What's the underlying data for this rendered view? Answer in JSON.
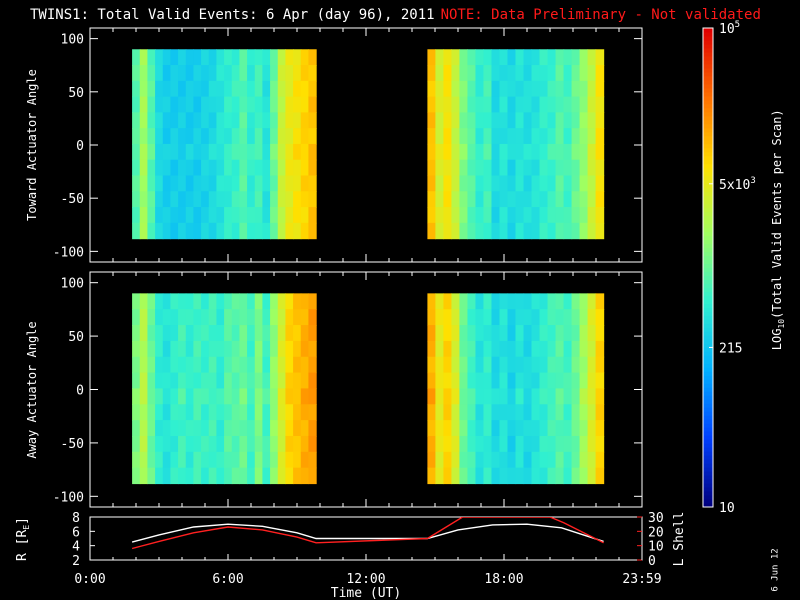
{
  "title": {
    "main": "TWINS1: Total Valid Events:  6 Apr (day  96), 2011",
    "note": "NOTE: Data Preliminary - Not validated",
    "note_color": "#ff1a1a"
  },
  "date_stamp": "6 Jun 12",
  "colorbar": {
    "label": "LOG10(Total Valid Events per Scan)",
    "label_parts": [
      "LOG",
      "10",
      "(Total Valid Events per Scan)"
    ],
    "scale": "log",
    "range": [
      10,
      100000
    ],
    "tick_labels": [
      {
        "value": 100000,
        "text": "10",
        "sup": "5"
      },
      {
        "value": 5000,
        "text": "5x10",
        "sup": "3"
      },
      {
        "value": 215,
        "text": "215",
        "sup": ""
      },
      {
        "value": 10,
        "text": "10",
        "sup": ""
      }
    ],
    "colormap": [
      "#00007f",
      "#0040ff",
      "#00b0ff",
      "#30f0d0",
      "#a0ff60",
      "#ffe000",
      "#ff7000",
      "#e00000"
    ]
  },
  "chart_data": [
    {
      "type": "heatmap",
      "panel": "toward",
      "ylabel": "Toward Actuator Angle",
      "ylim": [
        -110,
        110
      ],
      "yticks": [
        100,
        50,
        0,
        -50,
        -100
      ],
      "xlim_hours": [
        0,
        24
      ],
      "data_extent_y": [
        -88,
        90
      ],
      "blocks": [
        {
          "x_start": "01:50",
          "x_end": "09:50",
          "hours": [
            1.83,
            9.83
          ]
        },
        {
          "x_start": "14:40",
          "x_end": "22:20",
          "hours": [
            14.67,
            22.33
          ]
        }
      ],
      "log_events_profile_block1": [
        2.9,
        3.3,
        2.9,
        2.5,
        2.4,
        2.4,
        2.4,
        2.4,
        2.4,
        2.45,
        2.5,
        2.6,
        2.7,
        2.75,
        2.9,
        2.7,
        2.8,
        2.6,
        3.0,
        3.5,
        3.7,
        3.8,
        3.9,
        4.0
      ],
      "log_events_profile_block2": [
        4.0,
        3.6,
        3.8,
        3.5,
        3.1,
        2.9,
        2.7,
        2.8,
        2.5,
        2.6,
        2.5,
        2.6,
        2.55,
        2.6,
        2.7,
        2.75,
        2.9,
        2.8,
        3.0,
        3.2,
        3.5,
        3.8
      ]
    },
    {
      "type": "heatmap",
      "panel": "away",
      "ylabel": "Away Actuator Angle",
      "ylim": [
        -110,
        110
      ],
      "yticks": [
        100,
        50,
        0,
        -50,
        -100
      ],
      "xlim_hours": [
        0,
        24
      ],
      "data_extent_y": [
        -88,
        90
      ],
      "blocks": [
        {
          "x_start": "01:50",
          "x_end": "09:50",
          "hours": [
            1.83,
            9.83
          ]
        },
        {
          "x_start": "14:40",
          "x_end": "22:20",
          "hours": [
            14.67,
            22.33
          ]
        }
      ],
      "log_events_profile_block1": [
        3.1,
        3.4,
        3.0,
        2.7,
        2.6,
        2.7,
        2.8,
        2.7,
        2.8,
        2.75,
        2.8,
        2.7,
        2.9,
        2.9,
        3.0,
        2.8,
        3.1,
        2.8,
        3.2,
        3.6,
        3.9,
        4.0,
        4.1,
        4.2
      ],
      "log_events_profile_block2": [
        4.1,
        3.7,
        3.9,
        3.6,
        3.0,
        2.8,
        2.6,
        2.7,
        2.5,
        2.6,
        2.45,
        2.6,
        2.5,
        2.6,
        2.7,
        2.8,
        2.9,
        2.8,
        3.0,
        3.3,
        3.6,
        3.9
      ]
    },
    {
      "type": "line",
      "panel": "orbit",
      "xlabel": "Time (UT)",
      "xticks": [
        "0:00",
        "6:00",
        "12:00",
        "18:00",
        "23:59"
      ],
      "xtick_hours": [
        0,
        6,
        12,
        18,
        24
      ],
      "ylabel_left": "R [RE]",
      "ylim_left": [
        2,
        8
      ],
      "yticks_left": [
        2,
        4,
        6,
        8
      ],
      "ylabel_right": "L Shell",
      "ylim_right": [
        0,
        30
      ],
      "yticks_right": [
        0,
        10,
        20,
        30
      ],
      "series": [
        {
          "name": "R",
          "axis": "left",
          "color": "#ffffff",
          "x": [
            1.83,
            3,
            4.5,
            6,
            7.5,
            9,
            9.83,
            14.67,
            16,
            17.5,
            19,
            20.5,
            22.33
          ],
          "y": [
            4.5,
            5.5,
            6.6,
            7.0,
            6.7,
            5.8,
            5.0,
            5.0,
            6.2,
            6.9,
            7.0,
            6.5,
            4.6
          ]
        },
        {
          "name": "L Shell",
          "axis": "right",
          "color": "#ff2020",
          "x": [
            1.83,
            3,
            4.5,
            6,
            7.5,
            9,
            9.83,
            14.67,
            16.2,
            20,
            20.6,
            22.33
          ],
          "y": [
            8,
            13,
            19,
            23,
            21,
            16,
            12,
            15,
            30,
            30,
            26,
            12
          ]
        }
      ]
    }
  ]
}
